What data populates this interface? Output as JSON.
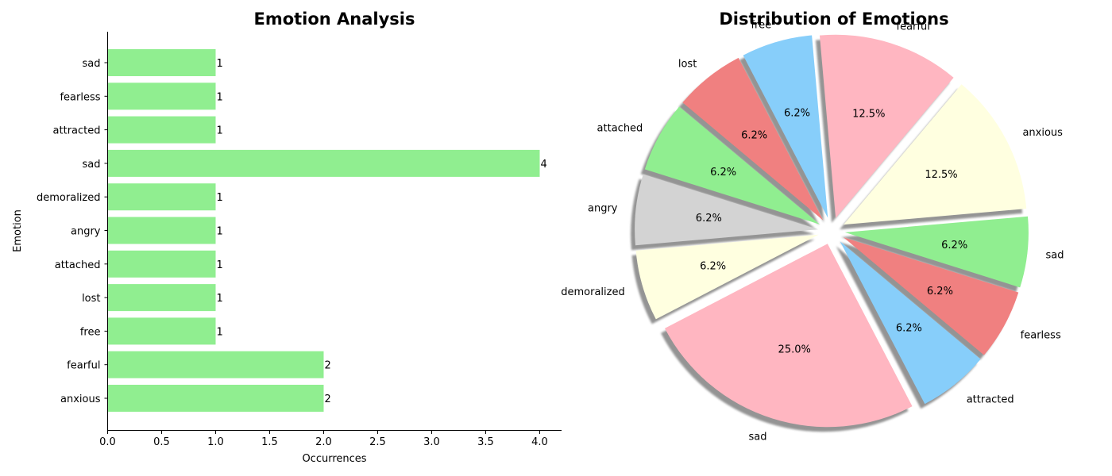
{
  "chart_data": [
    {
      "type": "bar",
      "orientation": "horizontal",
      "title": "Emotion Analysis",
      "xlabel": "Occurrences",
      "ylabel": "Emotion",
      "categories": [
        "anxious",
        "fearful",
        "free",
        "lost",
        "attached",
        "angry",
        "demoralized",
        "sad",
        "attracted",
        "fearless",
        "sad"
      ],
      "values": [
        2,
        2,
        1,
        1,
        1,
        1,
        1,
        4,
        1,
        1,
        1
      ],
      "xlim": [
        0,
        4.2
      ],
      "xticks": [
        "0.0",
        "0.5",
        "1.0",
        "1.5",
        "2.0",
        "2.5",
        "3.0",
        "3.5",
        "4.0"
      ],
      "bar_color": "#90ee90",
      "grid": false
    },
    {
      "type": "pie",
      "title": "Distribution of Emotions",
      "labels": [
        "fearful",
        "free",
        "lost",
        "attached",
        "angry",
        "demoralized",
        "sad",
        "attracted",
        "fearless",
        "sad",
        "anxious"
      ],
      "values": [
        2,
        1,
        1,
        1,
        1,
        1,
        4,
        1,
        1,
        1,
        2
      ],
      "pct_labels": [
        "12.5%",
        "6.2%",
        "6.2%",
        "6.2%",
        "6.2%",
        "6.2%",
        "25.0%",
        "6.2%",
        "6.2%",
        "6.2%",
        "12.5%"
      ],
      "colors": [
        "#ffb6c1",
        "#87cefa",
        "#f08080",
        "#90ee90",
        "#d3d3d3",
        "#ffffe0",
        "#ffb6c1",
        "#87cefa",
        "#f08080",
        "#90ee90",
        "#ffffe0"
      ],
      "explode": true,
      "shadow": true
    }
  ]
}
